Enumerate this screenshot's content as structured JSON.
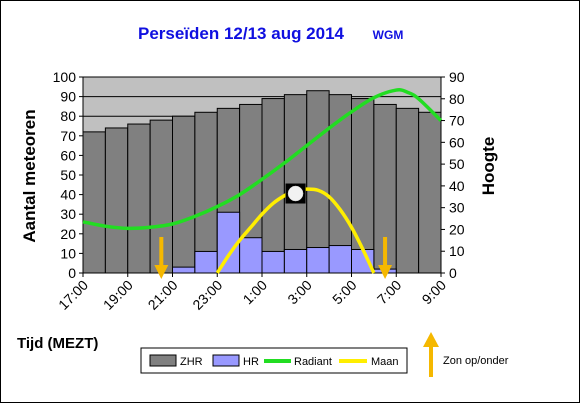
{
  "chart_data": {
    "type": "bar",
    "title": "Perseïden 12/13 aug 2014",
    "subtitle": "WGM",
    "colors": {
      "title": "#1010e0",
      "zhr": "#808080",
      "hr": "#9999ff",
      "radiant": "#22dd22",
      "moon": "#ffee00",
      "sun": "#f5b800",
      "plot_bg": "#c0c0c0"
    },
    "xlabel": "Tijd (MEZT)",
    "ylabel": "Aantal meteoren",
    "y2label": "Hoogte",
    "ylim": [
      0,
      100
    ],
    "y2lim": [
      0,
      90
    ],
    "yticks": [
      0,
      10,
      20,
      30,
      40,
      50,
      60,
      70,
      80,
      90,
      100
    ],
    "y2ticks": [
      0,
      10,
      20,
      30,
      40,
      50,
      60,
      70,
      80,
      90
    ],
    "xlim": [
      17,
      33
    ],
    "xticks": [
      {
        "x": 17,
        "label": "17:00"
      },
      {
        "x": 19,
        "label": "19:00"
      },
      {
        "x": 21,
        "label": "21:00"
      },
      {
        "x": 23,
        "label": "23:00"
      },
      {
        "x": 25,
        "label": "1:00"
      },
      {
        "x": 27,
        "label": "3:00"
      },
      {
        "x": 29,
        "label": "5:00"
      },
      {
        "x": 31,
        "label": "7:00"
      },
      {
        "x": 33,
        "label": "9:00"
      }
    ],
    "series": [
      {
        "name": "ZHR",
        "kind": "bar",
        "axis": "left",
        "values": [
          72,
          74,
          76,
          78,
          80,
          82,
          84,
          86,
          89,
          91,
          93,
          91,
          89,
          86,
          84,
          82
        ]
      },
      {
        "name": "HR",
        "kind": "bar",
        "axis": "left",
        "values": [
          0,
          0,
          0,
          0,
          3,
          11,
          31,
          18,
          11,
          12,
          13,
          14,
          12,
          2,
          0,
          0
        ]
      },
      {
        "name": "Radiant",
        "kind": "line",
        "axis": "right",
        "x": [
          17,
          18,
          19,
          20,
          21,
          22,
          23,
          24,
          25,
          26,
          27,
          28,
          29,
          30,
          31,
          31.5,
          32,
          33
        ],
        "y": [
          23.5,
          21.5,
          20.5,
          21,
          22.5,
          26,
          30.5,
          36,
          43,
          50.5,
          58.5,
          66.5,
          74,
          80.5,
          84,
          83,
          80,
          70
        ]
      },
      {
        "name": "Maan",
        "kind": "line",
        "axis": "right",
        "x": [
          23,
          23.5,
          24,
          24.5,
          25,
          25.5,
          26,
          26.5,
          27,
          27.5,
          28,
          28.5,
          29,
          29.5,
          30
        ],
        "y": [
          0,
          8,
          15,
          21,
          27,
          32,
          35.5,
          38,
          38.5,
          38,
          35,
          29,
          21,
          11,
          0
        ]
      }
    ],
    "moon_marker": {
      "x": 26.5,
      "y": 36.5
    },
    "sun_events": [
      {
        "x": 20.5
      },
      {
        "x": 30.5
      }
    ],
    "legend": {
      "placement": "bottom",
      "sun_label": "Zon op/onder"
    }
  }
}
